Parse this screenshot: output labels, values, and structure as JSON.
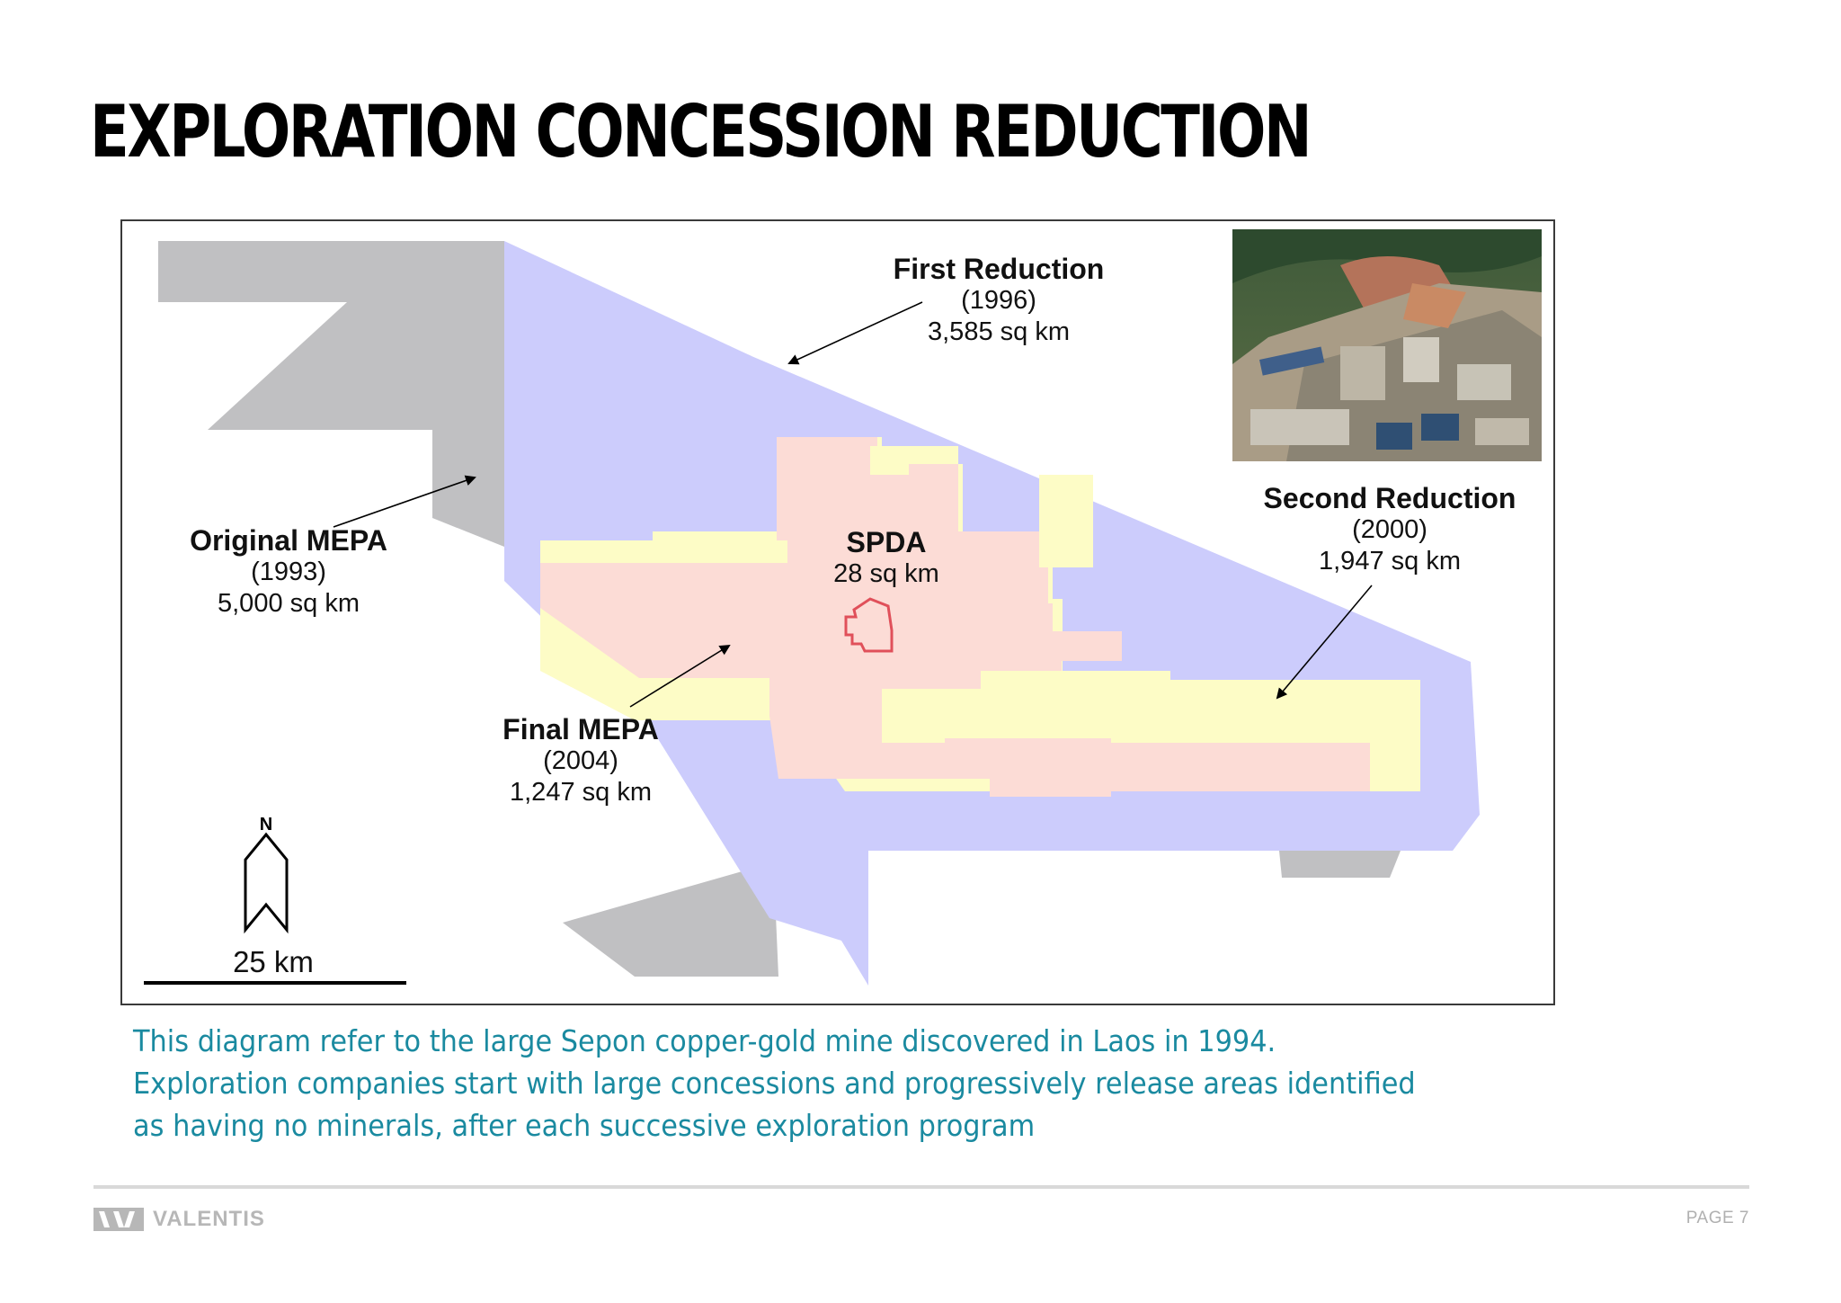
{
  "page": {
    "title": "EXPLORATION CONCESSION REDUCTION",
    "caption": "This diagram refer to the large Sepon copper-gold mine discovered in Laos in 1994. Exploration companies start with large concessions and progressively release areas identified as having no minerals, after each successive exploration program",
    "page_number": "PAGE 7"
  },
  "brand": {
    "name": "VALENTIS"
  },
  "map": {
    "labels": {
      "first_reduction": {
        "title": "First Reduction",
        "year": "(1996)",
        "area": "3,585 sq km"
      },
      "second_reduction": {
        "title": "Second Reduction",
        "year": "(2000)",
        "area": "1,947 sq km"
      },
      "original_mepa": {
        "title": "Original MEPA",
        "year": "(1993)",
        "area": "5,000 sq km"
      },
      "final_mepa": {
        "title": "Final MEPA",
        "year": "(2004)",
        "area": "1,247 sq km"
      },
      "spda": {
        "title": "SPDA",
        "area": "28 sq km"
      }
    },
    "north_label": "N",
    "scale_label": "25 km",
    "colors": {
      "original_mepa": "#c0c0c2",
      "first_reduction": "#ccccfc",
      "second_reduction": "#fdfcc6",
      "final_mepa": "#fcdcd6",
      "spda_outline": "#e0505a"
    }
  }
}
